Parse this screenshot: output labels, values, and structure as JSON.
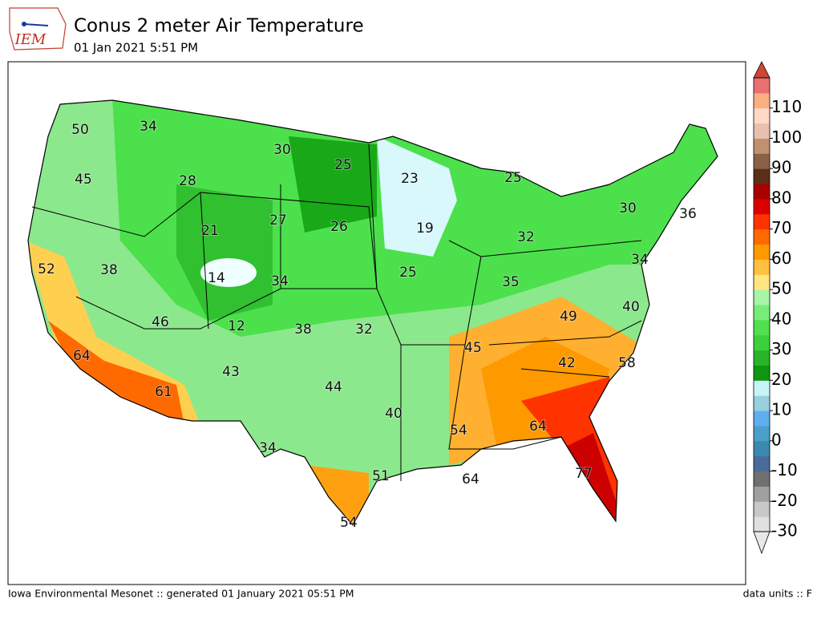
{
  "header": {
    "logo": "IEM",
    "title": "Conus 2 meter Air Temperature",
    "subtitle": "01 Jan 2021 5:51 PM"
  },
  "footer": {
    "left": "Iowa Environmental Mesonet :: generated 01 January 2021 05:51 PM",
    "right": "data units :: F"
  },
  "contour_labels": [
    50,
    34,
    30,
    25,
    23,
    25,
    45,
    28,
    27,
    26,
    19,
    30,
    36,
    21,
    32,
    14,
    34,
    25,
    34,
    52,
    38,
    35,
    46,
    12,
    38,
    32,
    49,
    40,
    64,
    45,
    43,
    42,
    58,
    61,
    44,
    40,
    54,
    64,
    34,
    51,
    64,
    77,
    54
  ],
  "colorbar": {
    "lim": [
      -30,
      120
    ],
    "ticks": [
      -30,
      -20,
      -10,
      0,
      10,
      20,
      30,
      40,
      50,
      60,
      70,
      80,
      90,
      100,
      110
    ],
    "colors": [
      "#e0e0e0",
      "#c8c8c8",
      "#a0a0a0",
      "#707070",
      "#4a6a9a",
      "#3a8ab0",
      "#4aa0c8",
      "#60aef0",
      "#98d0e0",
      "#c8f4f8",
      "#109610",
      "#28b428",
      "#3cd03c",
      "#50e050",
      "#78ec78",
      "#a8f4a8",
      "#ffe680",
      "#ffc040",
      "#ff9900",
      "#ff6a00",
      "#ff3300",
      "#dd0000",
      "#aa0000",
      "#5a3018",
      "#8a6048",
      "#c09070",
      "#e8c0b0",
      "#ffd8c8",
      "#f8b080",
      "#e87070"
    ],
    "extend_colors": [
      "#e8e8e8",
      "#d04535"
    ]
  }
}
